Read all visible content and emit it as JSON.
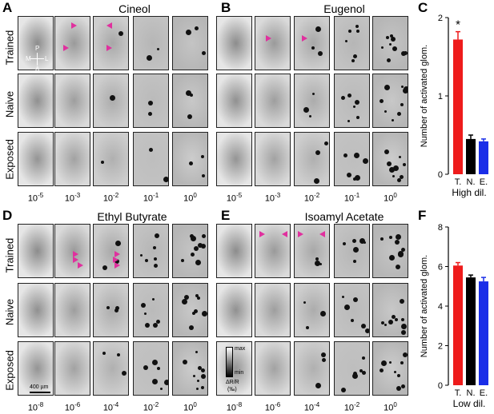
{
  "panels": {
    "A": {
      "letter": "A",
      "title": "Cineol"
    },
    "B": {
      "letter": "B",
      "title": "Eugenol"
    },
    "C": {
      "letter": "C"
    },
    "D": {
      "letter": "D",
      "title": "Ethyl Butyrate"
    },
    "E": {
      "letter": "E",
      "title": "Isoamyl Acetate"
    },
    "F": {
      "letter": "F"
    }
  },
  "row_labels": [
    "Trained",
    "Naive",
    "Exposed"
  ],
  "conc_top": [
    {
      "base": "10",
      "exp": "-5"
    },
    {
      "base": "10",
      "exp": "-3"
    },
    {
      "base": "10",
      "exp": "-2"
    },
    {
      "base": "10",
      "exp": "-1"
    },
    {
      "base": "10",
      "exp": "0"
    }
  ],
  "conc_bottom": [
    {
      "base": "10",
      "exp": "-8"
    },
    {
      "base": "10",
      "exp": "-6"
    },
    {
      "base": "10",
      "exp": "-4"
    },
    {
      "base": "10",
      "exp": "-2"
    },
    {
      "base": "10",
      "exp": "0"
    }
  ],
  "orientation": {
    "p": "P",
    "m": "M",
    "l": "L",
    "a": "A"
  },
  "scale_bar": "400 µm",
  "colorbar": {
    "max": "max",
    "min": "min",
    "label1": "ΔR/R",
    "label2": "(‰)"
  },
  "chart_data": [
    {
      "type": "bar",
      "categories": [
        "T.",
        "N.",
        "E."
      ],
      "values": [
        1.72,
        0.45,
        0.42
      ],
      "errors": [
        0.1,
        0.05,
        0.03
      ],
      "colors": [
        "#ee1c1c",
        "#000000",
        "#1a2ee8"
      ],
      "ylabel": "Number of activated glom.",
      "xlabel": "High dil.",
      "ylim": [
        0,
        2
      ],
      "yticks": [
        0,
        1,
        2
      ],
      "annotation": "*"
    },
    {
      "type": "bar",
      "categories": [
        "T.",
        "N.",
        "E."
      ],
      "values": [
        6.05,
        5.45,
        5.25
      ],
      "errors": [
        0.15,
        0.12,
        0.2
      ],
      "colors": [
        "#ee1c1c",
        "#000000",
        "#1a2ee8"
      ],
      "ylabel": "Number of activated glom.",
      "xlabel": "Low dil.",
      "ylim": [
        0,
        8
      ],
      "yticks": [
        0,
        2,
        4,
        6,
        8
      ]
    }
  ]
}
